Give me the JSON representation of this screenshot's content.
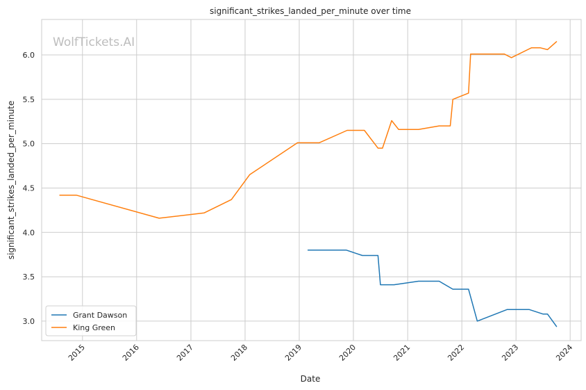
{
  "chart_data": {
    "type": "line",
    "title": "significant_strikes_landed_per_minute over time",
    "xlabel": "Date",
    "ylabel": "significant_strikes_landed_per_minute",
    "watermark": "WolfTickets.AI",
    "xlim": [
      "2014-04-01",
      "2024-03-15"
    ],
    "ylim": [
      2.78,
      6.4
    ],
    "x_ticks": [
      "2015",
      "2016",
      "2017",
      "2018",
      "2019",
      "2020",
      "2021",
      "2022",
      "2023",
      "2024"
    ],
    "y_ticks": [
      "3.0",
      "3.5",
      "4.0",
      "4.5",
      "5.0",
      "5.5",
      "6.0"
    ],
    "grid": true,
    "legend_position": "lower-left",
    "series": [
      {
        "name": "Grant Dawson",
        "color": "#1f77b4",
        "points": [
          [
            "2019-03-01",
            3.8
          ],
          [
            "2019-11-15",
            3.8
          ],
          [
            "2020-03-01",
            3.74
          ],
          [
            "2020-06-15",
            3.74
          ],
          [
            "2020-07-01",
            3.41
          ],
          [
            "2020-10-01",
            3.41
          ],
          [
            "2021-03-15",
            3.45
          ],
          [
            "2021-08-01",
            3.45
          ],
          [
            "2021-11-01",
            3.36
          ],
          [
            "2022-02-15",
            3.36
          ],
          [
            "2022-04-15",
            3.0
          ],
          [
            "2022-11-01",
            3.13
          ],
          [
            "2023-04-01",
            3.13
          ],
          [
            "2023-07-01",
            3.08
          ],
          [
            "2023-08-01",
            3.08
          ],
          [
            "2023-10-01",
            2.94
          ]
        ]
      },
      {
        "name": "King Green",
        "color": "#ff7f0e",
        "points": [
          [
            "2014-08-01",
            4.42
          ],
          [
            "2014-11-20",
            4.42
          ],
          [
            "2016-06-01",
            4.16
          ],
          [
            "2017-04-01",
            4.22
          ],
          [
            "2017-10-01",
            4.37
          ],
          [
            "2018-02-01",
            4.65
          ],
          [
            "2018-12-20",
            5.01
          ],
          [
            "2019-05-15",
            5.01
          ],
          [
            "2019-11-20",
            5.15
          ],
          [
            "2020-03-15",
            5.15
          ],
          [
            "2020-06-15",
            4.95
          ],
          [
            "2020-07-15",
            4.95
          ],
          [
            "2020-09-15",
            5.26
          ],
          [
            "2020-11-01",
            5.16
          ],
          [
            "2021-03-15",
            5.16
          ],
          [
            "2021-08-01",
            5.2
          ],
          [
            "2021-10-15",
            5.2
          ],
          [
            "2021-11-01",
            5.5
          ],
          [
            "2022-02-15",
            5.57
          ],
          [
            "2022-03-01",
            6.01
          ],
          [
            "2022-10-15",
            6.01
          ],
          [
            "2022-12-01",
            5.97
          ],
          [
            "2023-04-15",
            6.08
          ],
          [
            "2023-06-15",
            6.08
          ],
          [
            "2023-08-01",
            6.06
          ],
          [
            "2023-10-01",
            6.15
          ]
        ]
      }
    ]
  }
}
